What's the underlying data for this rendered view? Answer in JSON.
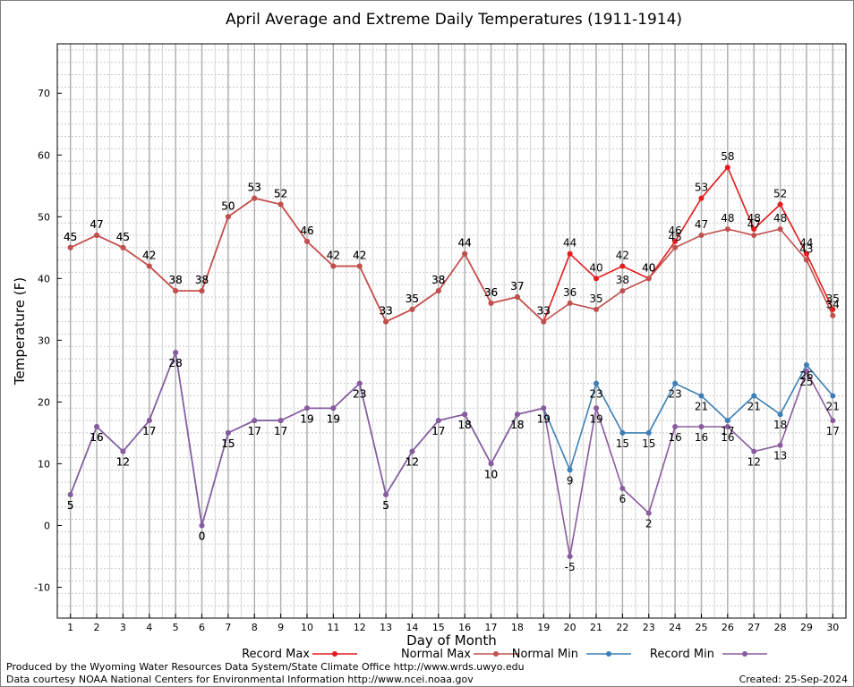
{
  "chart_data": {
    "type": "line",
    "title": "April Average and Extreme Daily Temperatures (1911-1914)",
    "xlabel": "Day of Month",
    "ylabel": "Temperature (F)",
    "x": [
      1,
      2,
      3,
      4,
      5,
      6,
      7,
      8,
      9,
      10,
      11,
      12,
      13,
      14,
      15,
      16,
      17,
      18,
      19,
      20,
      21,
      22,
      23,
      24,
      25,
      26,
      27,
      28,
      29,
      30
    ],
    "xlim": [
      0.5,
      30.5
    ],
    "ylim": [
      -15,
      78
    ],
    "yticks": [
      -10,
      0,
      10,
      20,
      30,
      40,
      50,
      60,
      70
    ],
    "grid": true,
    "legend_position": "bottom",
    "series": [
      {
        "name": "Record Max",
        "color": "#e41a1c",
        "label_position": "above",
        "values": [
          45,
          47,
          45,
          42,
          38,
          38,
          50,
          53,
          52,
          46,
          42,
          42,
          33,
          35,
          38,
          44,
          36,
          37,
          33,
          44,
          40,
          42,
          40,
          46,
          53,
          58,
          48,
          52,
          44,
          35
        ]
      },
      {
        "name": "Normal Max",
        "color": "#c0504d",
        "label_position": "above",
        "values": [
          45,
          47,
          45,
          42,
          38,
          38,
          50,
          53,
          52,
          46,
          42,
          42,
          33,
          35,
          38,
          44,
          36,
          37,
          33,
          36,
          35,
          38,
          40,
          45,
          47,
          48,
          47,
          48,
          43,
          34
        ]
      },
      {
        "name": "Normal Min",
        "color": "#3b7fb6",
        "label_position": "below",
        "values": [
          5,
          16,
          12,
          17,
          28,
          0,
          15,
          17,
          17,
          19,
          19,
          23,
          5,
          12,
          17,
          18,
          10,
          18,
          19,
          9,
          23,
          15,
          15,
          23,
          21,
          17,
          21,
          18,
          26,
          21
        ]
      },
      {
        "name": "Record Min",
        "color": "#8a5a9e",
        "label_position": "below",
        "values": [
          5,
          16,
          12,
          17,
          28,
          0,
          15,
          17,
          17,
          19,
          19,
          23,
          5,
          12,
          17,
          18,
          10,
          18,
          19,
          -5,
          19,
          6,
          2,
          16,
          16,
          16,
          12,
          13,
          25,
          17
        ]
      }
    ]
  },
  "footer": {
    "line1": "Produced by the Wyoming Water Resources Data System/State Climate Office http://www.wrds.uwyo.edu",
    "line2": "Data courtesy NOAA National Centers for Environmental Information http://www.ncei.noaa.gov",
    "created": "Created:  25-Sep-2024"
  }
}
